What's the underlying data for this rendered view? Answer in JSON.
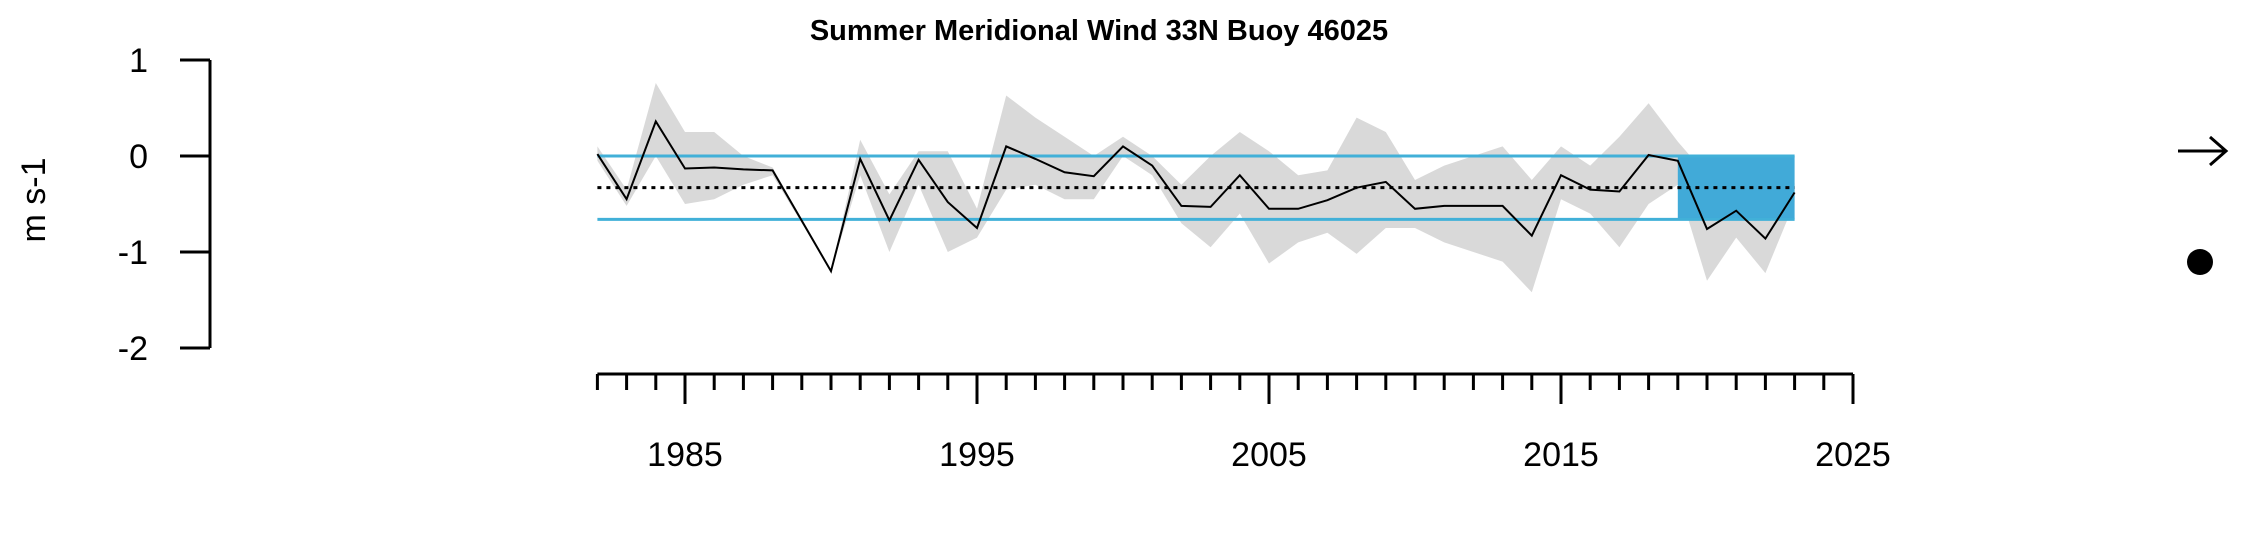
{
  "chart_data": {
    "type": "line",
    "title": "Summer Meridional Wind 33N Buoy 46025",
    "ylabel": "m s-1",
    "xlabel": "",
    "xlim": [
      1982,
      2025
    ],
    "ylim": [
      -2,
      1
    ],
    "x_ticks": [
      1985,
      1995,
      2005,
      2015,
      2025
    ],
    "y_ticks": [
      1,
      0,
      -1,
      -2
    ],
    "y_tick_labels": [
      "1",
      "0",
      "-1",
      "-2"
    ],
    "grid": false,
    "mean": -0.33,
    "sd_upper": 0.0,
    "sd_lower": -0.66,
    "highlight_start": 2019,
    "highlight_end": 2023,
    "trend_symbol": "right-arrow-icon",
    "mean_symbol": "filled-circle-icon",
    "colors": {
      "line": "#000000",
      "error_band": "#d9d9d9",
      "sd_lines": "#41b0d8",
      "highlight": "#41aad8",
      "mean_line_main": "#000000",
      "mean_line_band": "#aaaaaa"
    },
    "series": [
      {
        "x": [
          1982,
          1983,
          1984,
          1985,
          1986,
          1987,
          1988,
          1990,
          1991,
          1992,
          1993,
          1994,
          1995,
          1996,
          1997,
          1998,
          1999,
          2000,
          2001,
          2002,
          2003,
          2004,
          2005,
          2006,
          2007,
          2008,
          2009,
          2010,
          2011,
          2012,
          2013,
          2014,
          2015,
          2016,
          2017,
          2018,
          2019,
          2020,
          2021,
          2022,
          2023
        ],
        "y": [
          0.02,
          -0.45,
          0.36,
          -0.13,
          -0.12,
          -0.14,
          -0.15,
          -1.2,
          -0.03,
          -0.67,
          -0.04,
          -0.48,
          -0.75,
          0.1,
          -0.03,
          -0.17,
          -0.21,
          0.1,
          -0.1,
          -0.52,
          -0.53,
          -0.2,
          -0.55,
          -0.55,
          -0.46,
          -0.33,
          -0.27,
          -0.55,
          -0.52,
          -0.52,
          -0.52,
          -0.83,
          -0.2,
          -0.35,
          -0.37,
          0.01,
          -0.05,
          -0.76,
          -0.57,
          -0.86,
          -0.38
        ],
        "upper": [
          0.1,
          -0.35,
          0.76,
          0.25,
          0.25,
          0.0,
          -0.12,
          -1.2,
          0.17,
          -0.4,
          0.05,
          0.05,
          -0.55,
          0.63,
          0.4,
          0.2,
          0.0,
          0.2,
          0.0,
          -0.3,
          0.0,
          0.25,
          0.05,
          -0.2,
          -0.15,
          0.4,
          0.25,
          -0.25,
          -0.1,
          0.0,
          0.1,
          -0.25,
          0.1,
          -0.1,
          0.2,
          0.55,
          0.15,
          -0.2,
          -0.28,
          -0.5,
          -0.28
        ],
        "lower": [
          -0.05,
          -0.52,
          0.0,
          -0.5,
          -0.45,
          -0.3,
          -0.2,
          -1.2,
          -0.2,
          -1.0,
          -0.3,
          -1.0,
          -0.85,
          -0.35,
          -0.3,
          -0.45,
          -0.45,
          0.0,
          -0.2,
          -0.7,
          -0.95,
          -0.6,
          -1.12,
          -0.9,
          -0.8,
          -1.02,
          -0.75,
          -0.75,
          -0.9,
          -1.0,
          -1.1,
          -1.42,
          -0.45,
          -0.6,
          -0.95,
          -0.5,
          -0.3,
          -1.3,
          -0.85,
          -1.22,
          -0.48
        ]
      }
    ]
  }
}
